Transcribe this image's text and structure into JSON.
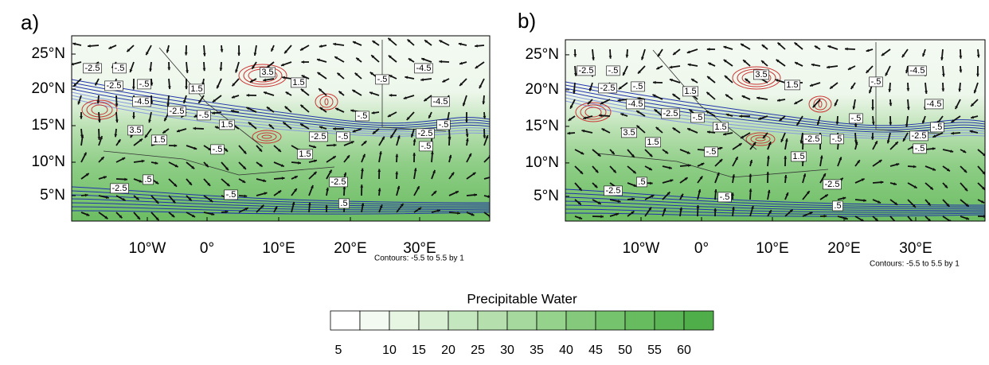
{
  "panels": [
    {
      "label": "a)",
      "lat_labels": [
        "25°N",
        "20°N",
        "15°N",
        "10°N",
        "5°N"
      ],
      "lon_labels": [
        "10°W",
        "0°",
        "10°E",
        "20°E",
        "30°E"
      ],
      "contour_labels": [
        "-2.5",
        "-2.5",
        "-.5",
        "-.5",
        "-4.5",
        "-2.5",
        "-.5",
        "1.5",
        "3.5",
        "1.5",
        "1.5",
        "-.5",
        "-4.5",
        "-.5",
        "-4.5",
        "-.5",
        "3.5",
        "1.5",
        "-.5",
        "-2.5",
        "-.5",
        "-2.5",
        "-.5",
        "1.5",
        ".5",
        "-2.5",
        "-.5",
        "-2.5",
        ".5"
      ],
      "note": "Contours: -5.5 to 5.5 by 1"
    },
    {
      "label": "b)",
      "lat_labels": [
        "25°N",
        "20°N",
        "15°N",
        "10°N",
        "5°N"
      ],
      "lon_labels": [
        "10°W",
        "0°",
        "10°E",
        "20°E",
        "30°E"
      ],
      "contour_labels": [
        "-2.5",
        "-2.5",
        "-.5",
        "-.5",
        "-4.5",
        "-2.5",
        "-.5",
        "1.5",
        "3.5",
        "1.5",
        "1.5",
        "-.5",
        "-4.5",
        "-.5",
        "-4.5",
        "-.5",
        "3.5",
        "1.5",
        "-.5",
        "-2.5",
        "-.5",
        "-2.5",
        "-.5",
        "1.5",
        ".5",
        "-2.5",
        "-.5",
        "-2.5",
        ".5"
      ],
      "note": "Contours: -5.5 to 5.5 by 1"
    }
  ],
  "colorbar": {
    "title": "Precipitable Water",
    "ticks": [
      5,
      10,
      15,
      20,
      25,
      30,
      35,
      40,
      45,
      50,
      55,
      60
    ],
    "colors": [
      "#ffffff",
      "#f3faf1",
      "#e7f5e3",
      "#d8efd3",
      "#c5e7bf",
      "#b5e0ae",
      "#a5d99d",
      "#95d28c",
      "#85ca7c",
      "#76c36d",
      "#68bc60",
      "#5cb555",
      "#4fae4a"
    ]
  }
}
